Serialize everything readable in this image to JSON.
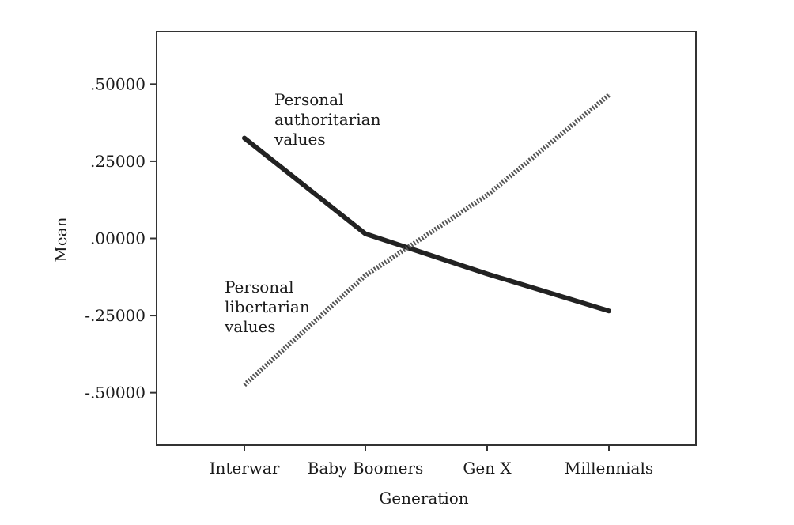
{
  "chart_data": {
    "type": "line",
    "xlabel": "Generation",
    "ylabel": "Mean",
    "categories": [
      "Interwar",
      "Baby Boomers",
      "Gen X",
      "Millennials"
    ],
    "ylim": [
      -0.67,
      0.67
    ],
    "yticks": [
      0.5,
      0.25,
      0.0,
      -0.25,
      -0.5
    ],
    "ytick_labels": [
      ".50000",
      ".25000",
      ".00000",
      "-.25000",
      "-.50000"
    ],
    "grid": false,
    "series": [
      {
        "name": "Personal authoritarian values",
        "label_lines": [
          "Personal",
          "authoritarian",
          "values"
        ],
        "values": [
          0.325,
          0.015,
          -0.115,
          -0.235
        ],
        "style": "solid",
        "color": "#222222"
      },
      {
        "name": "Personal libertarian values",
        "label_lines": [
          "Personal",
          "libertarian",
          "values"
        ],
        "values": [
          -0.475,
          -0.12,
          0.14,
          0.465
        ],
        "style": "dotted",
        "color": "#555555"
      }
    ]
  }
}
